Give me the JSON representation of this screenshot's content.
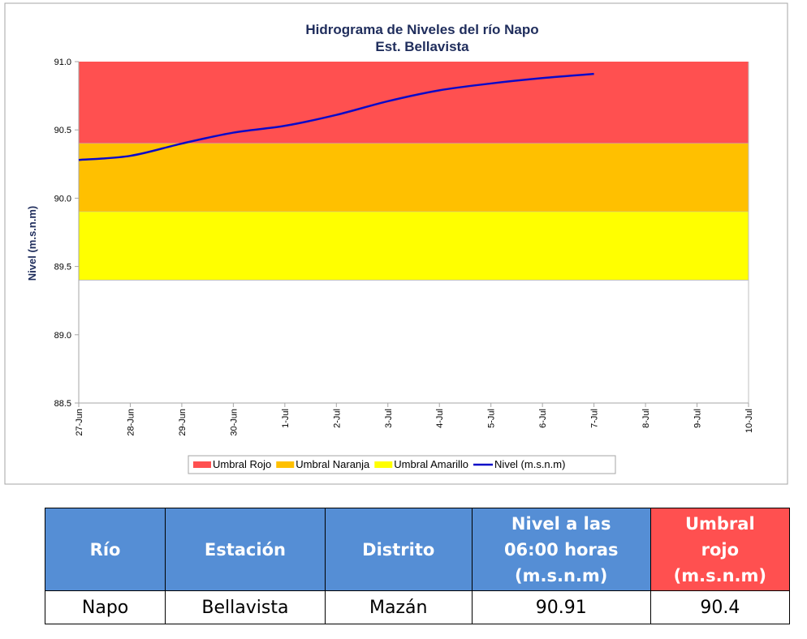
{
  "chart_data": {
    "type": "line",
    "title": "Hidrograma de Niveles del río Napo",
    "subtitle": "Est. Bellavista",
    "y_label": "Nivel (m.s.n.m)",
    "categories": [
      "27-Jun",
      "28-Jun",
      "29-Jun",
      "30-Jun",
      "1-Jul",
      "2-Jul",
      "3-Jul",
      "4-Jul",
      "5-Jul",
      "6-Jul",
      "7-Jul",
      "8-Jul",
      "9-Jul",
      "10-Jul"
    ],
    "thresholds": [
      {
        "name": "Umbral Rojo",
        "color": "#ff5050",
        "value": 90.4
      },
      {
        "name": "Umbral Naranja",
        "color": "#ffc000",
        "value": 89.9
      },
      {
        "name": "Umbral Amarillo",
        "color": "#ffff00",
        "value": 89.4
      }
    ],
    "series": [
      {
        "name": "Nivel (m.s.n.m)",
        "color": "#0a0ac8",
        "values": [
          90.28,
          90.31,
          90.4,
          90.48,
          90.53,
          90.61,
          90.71,
          90.79,
          90.84,
          90.88,
          90.91,
          null,
          null,
          null
        ]
      }
    ],
    "ylim": [
      88.5,
      91
    ],
    "yticks": [
      88.5,
      {
        "value": 89,
        "label": "89.0"
      },
      89.5,
      {
        "value": 90,
        "label": "90.0"
      },
      90.5,
      {
        "value": 91,
        "label": "91.0"
      }
    ],
    "legend": "bottom"
  },
  "table": {
    "header": [
      "Río",
      "Estación",
      "Distrito",
      "Nivel a las 06:00 horas (m.s.n.m)",
      "Umbral rojo (m.s.n.m)"
    ],
    "rows": [
      [
        "Napo",
        "Bellavista",
        "Mazán",
        90.91,
        90.4
      ]
    ]
  }
}
